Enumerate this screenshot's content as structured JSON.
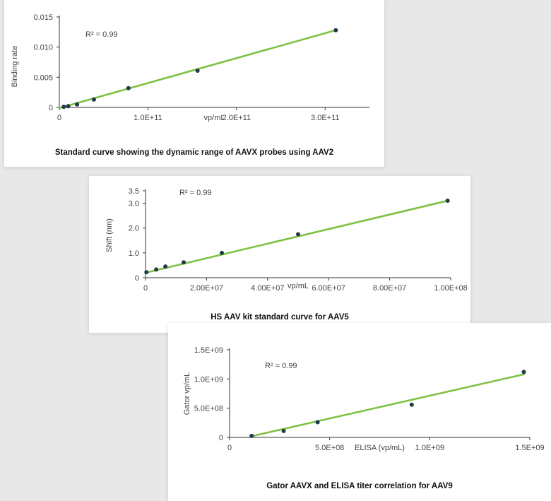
{
  "chart_data": [
    {
      "type": "scatter",
      "caption": "Standard curve showing the dynamic range of AAVX probes using AAV2",
      "xlabel": "vp/mL",
      "ylabel": "Binding rate",
      "annotation": "R² = 0.99",
      "xlim": [
        0,
        350000000000
      ],
      "ylim": [
        0,
        0.015
      ],
      "xticks": [
        {
          "v": 0,
          "label": "0"
        },
        {
          "v": 100000000000,
          "label": "1.0E+11"
        },
        {
          "v": 200000000000,
          "label": "2.0E+11"
        },
        {
          "v": 300000000000,
          "label": "3.0E+11"
        }
      ],
      "yticks": [
        {
          "v": 0,
          "label": "0"
        },
        {
          "v": 0.005,
          "label": "0.005"
        },
        {
          "v": 0.01,
          "label": "0.010"
        },
        {
          "v": 0.015,
          "label": "0.015"
        }
      ],
      "series": [
        {
          "x": [
            5000000000,
            10000000000,
            20000000000,
            39000000000,
            78000000000,
            156000000000,
            312000000000
          ],
          "y": [
            0.0001,
            0.0002,
            0.0005,
            0.0013,
            0.0032,
            0.0061,
            0.0128
          ]
        }
      ],
      "fit": {
        "x": [
          0,
          312000000000
        ],
        "y": [
          -0.0001,
          0.0128
        ]
      },
      "marker_color": "#1f3a4a",
      "line_color": "#7dc242"
    },
    {
      "type": "scatter",
      "caption": "HS AAV kit standard curve for AAV5",
      "xlabel": "vp/mL",
      "ylabel": "Shift (nm)",
      "annotation": "R² = 0.99",
      "xlim": [
        0,
        100000000
      ],
      "ylim": [
        0,
        3.5
      ],
      "xticks": [
        {
          "v": 0,
          "label": "0"
        },
        {
          "v": 20000000,
          "label": "2.00E+07"
        },
        {
          "v": 40000000,
          "label": "4.00E+07"
        },
        {
          "v": 60000000,
          "label": "6.00E+07"
        },
        {
          "v": 80000000,
          "label": "8.00E+07"
        },
        {
          "v": 100000000,
          "label": "1.00E+08"
        }
      ],
      "yticks": [
        {
          "v": 0,
          "label": "0"
        },
        {
          "v": 1.0,
          "label": "1.0"
        },
        {
          "v": 2.0,
          "label": "2.0"
        },
        {
          "v": 3.0,
          "label": "3.0"
        },
        {
          "v": 3.5,
          "label": "3.5"
        }
      ],
      "series": [
        {
          "x": [
            300000,
            3500000,
            6500000,
            12500000,
            25000000,
            50000000,
            99000000
          ],
          "y": [
            0.22,
            0.33,
            0.45,
            0.62,
            1.0,
            1.75,
            3.1
          ]
        }
      ],
      "fit": {
        "x": [
          0,
          99000000
        ],
        "y": [
          0.2,
          3.1
        ]
      },
      "marker_color": "#1f3a4a",
      "line_color": "#7dc242"
    },
    {
      "type": "scatter",
      "caption": "Gator AAVX and ELISA titer correlation for AAV9",
      "xlabel": "ELISA (vp/mL)",
      "ylabel": "Gator vp/mL",
      "annotation": "R² = 0.99",
      "xlim": [
        0,
        1500000000
      ],
      "ylim": [
        0,
        1500000000
      ],
      "xticks": [
        {
          "v": 0,
          "label": "0"
        },
        {
          "v": 500000000,
          "label": "5.0E+08"
        },
        {
          "v": 1000000000,
          "label": "1.0E+09"
        },
        {
          "v": 1500000000,
          "label": "1.5E+09"
        }
      ],
      "yticks": [
        {
          "v": 0,
          "label": "0"
        },
        {
          "v": 500000000,
          "label": "5.0E+08"
        },
        {
          "v": 1000000000,
          "label": "1.0E+09"
        },
        {
          "v": 1500000000,
          "label": "1.5E+09"
        }
      ],
      "series": [
        {
          "x": [
            110000000,
            270000000,
            440000000,
            910000000,
            1470000000
          ],
          "y": [
            25000000,
            110000000,
            260000000,
            560000000,
            1120000000
          ]
        }
      ],
      "fit": {
        "x": [
          110000000,
          1470000000
        ],
        "y": [
          20000000,
          1080000000
        ]
      },
      "marker_color": "#1f3a4a",
      "line_color": "#7dc242"
    }
  ]
}
